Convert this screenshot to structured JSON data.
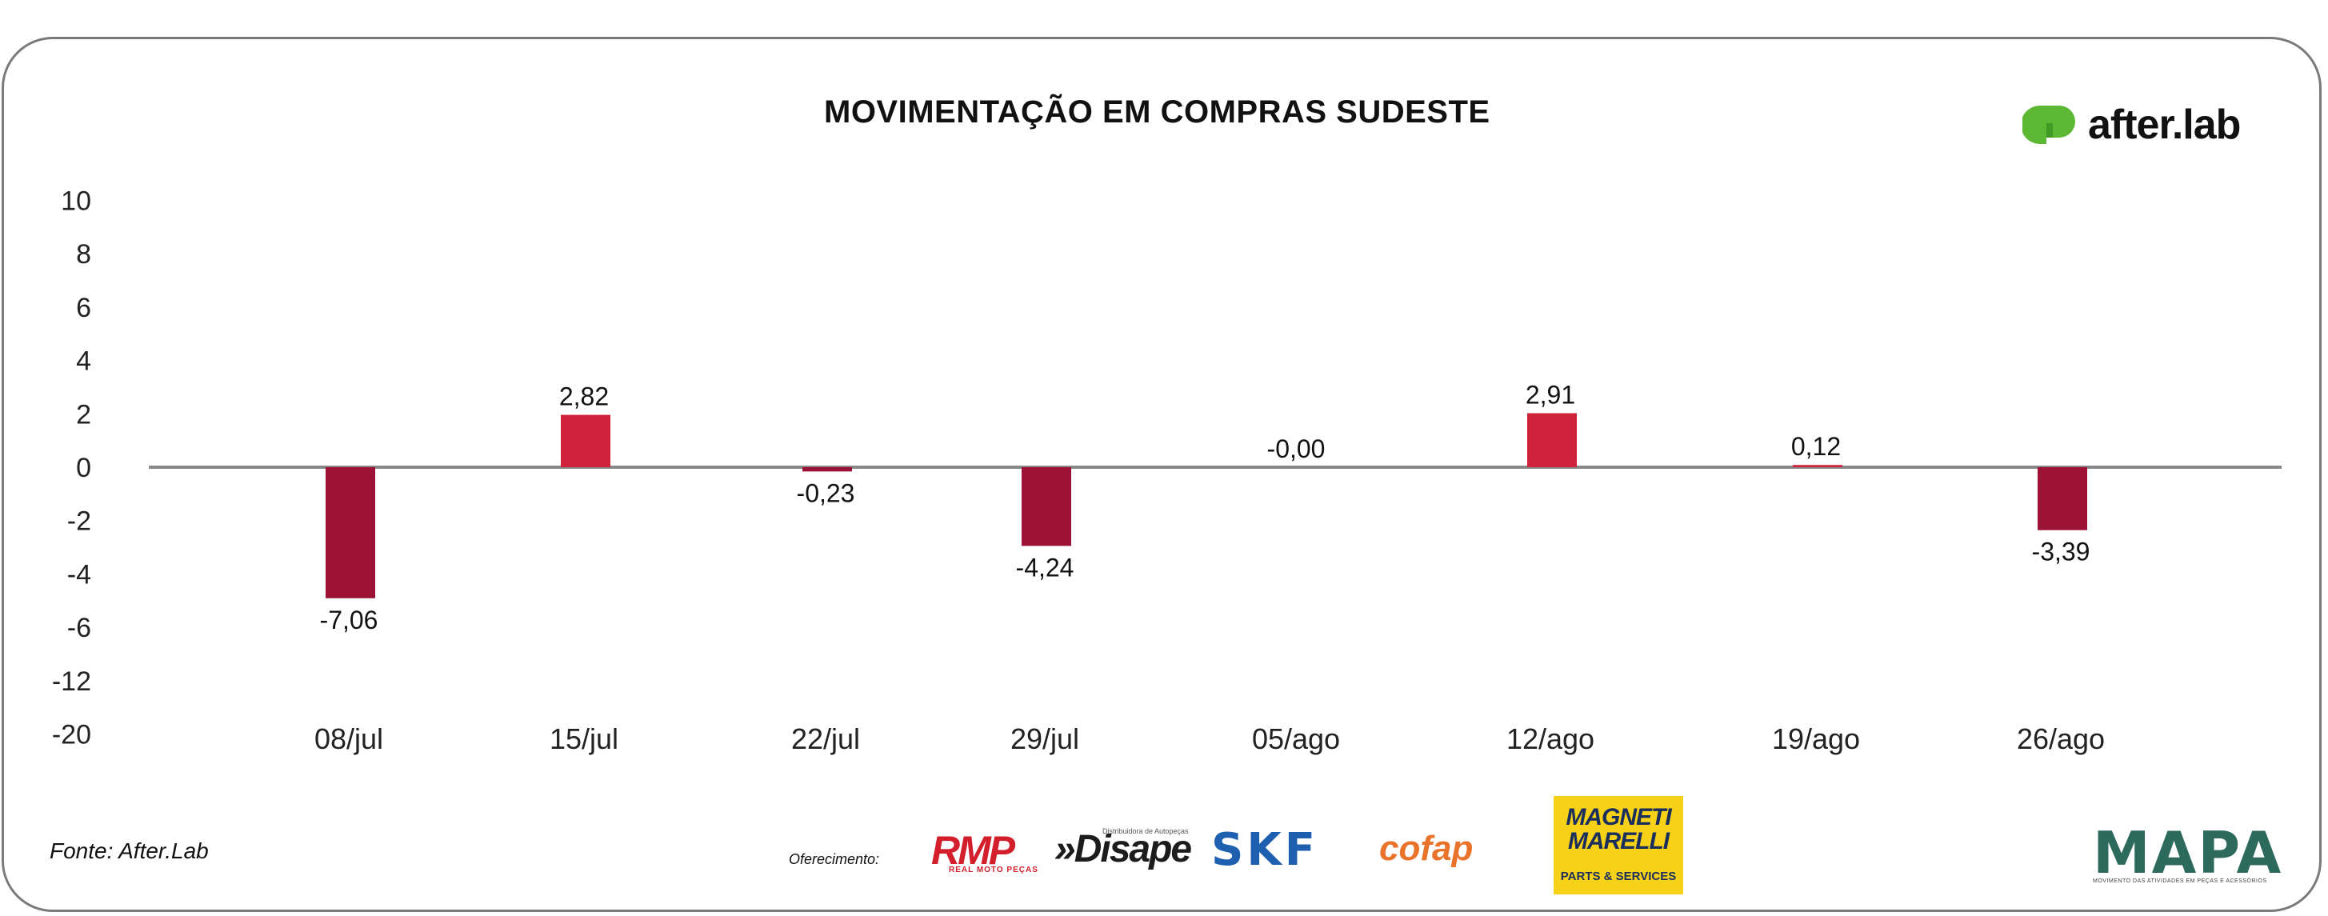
{
  "title": "MOVIMENTAÇÃO EM COMPRAS SUDESTE",
  "brand": {
    "name": "after.lab",
    "color": "#5cb833"
  },
  "source": "Fonte: After.Lab",
  "sponsors": {
    "label": "Oferecimento:",
    "rmp": "RMP",
    "rmp_sub": "REAL MOTO PEÇAS",
    "disape": "»Disape",
    "disape_sub": "Distribuidora de Autopeças",
    "skf": "SKF",
    "cofap": "cofap",
    "magneti_marelli": "MAGNETI MARELLI",
    "magneti_marelli_sub": "PARTS & SERVICES"
  },
  "mapa": {
    "name": "MAPA",
    "tagline": "MOVIMENTO DAS ATIVIDADES EM PEÇAS E ACESSÓRIOS"
  },
  "chart_data": {
    "type": "bar",
    "categories": [
      "08/jul",
      "15/jul",
      "22/jul",
      "29/jul",
      "05/ago",
      "12/ago",
      "19/ago",
      "26/ago"
    ],
    "values": [
      -7.06,
      2.82,
      -0.23,
      -4.24,
      -0.0,
      2.91,
      0.12,
      -3.39
    ],
    "data_labels": [
      "-7,06",
      "2,82",
      "-0,23",
      "-4,24",
      "-0,00",
      "2,91",
      "0,12",
      "-3,39"
    ],
    "y_tick_labels": [
      "10",
      "8",
      "6",
      "4",
      "2",
      "0",
      "-2",
      "-4",
      "-6",
      "-12",
      "-20"
    ],
    "colors": {
      "positive": "#d0223a",
      "negative": "#9b1234",
      "zero_line": "#888888"
    },
    "grid": false,
    "legend": "none"
  }
}
